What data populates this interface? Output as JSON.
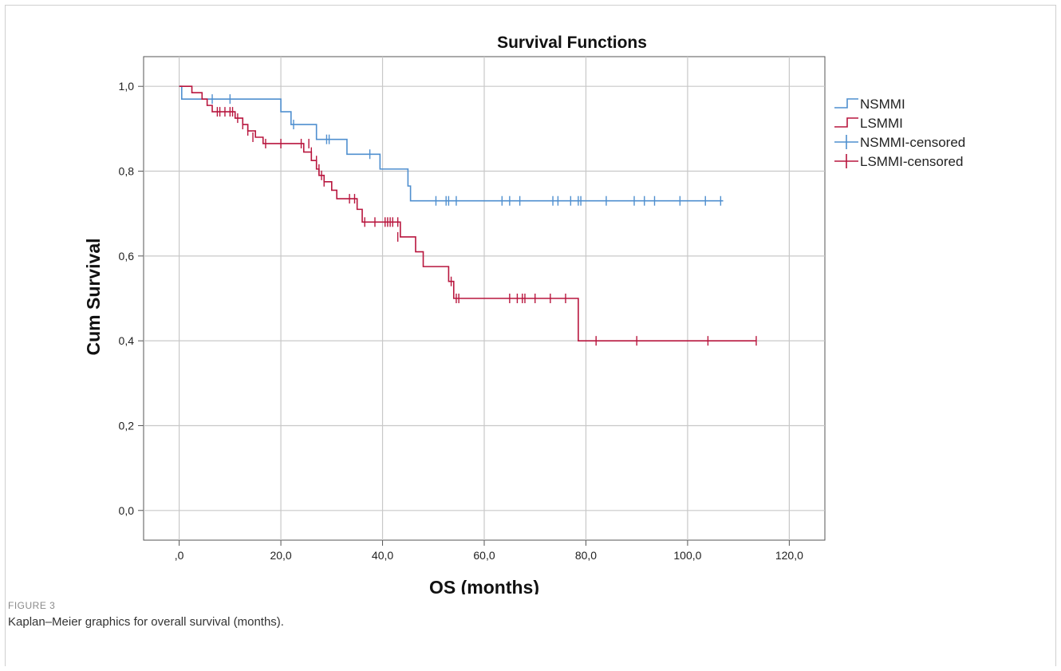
{
  "figure": {
    "label": "FIGURE 3",
    "caption": "Kaplan–Meier graphics for overall survival (months)."
  },
  "chart_data": {
    "type": "line",
    "subtype": "kaplan-meier step plot",
    "title": "Survival Functions",
    "xlabel": "OS (months)",
    "ylabel": "Cum Survival",
    "xlim": [
      -7,
      127
    ],
    "ylim": [
      -0.07,
      1.07
    ],
    "x_ticks": [
      0,
      20,
      40,
      60,
      80,
      100,
      120
    ],
    "x_tick_labels": [
      ",0",
      "20,0",
      "40,0",
      "60,0",
      "80,0",
      "100,0",
      "120,0"
    ],
    "y_ticks": [
      0,
      0.2,
      0.4,
      0.6,
      0.8,
      1.0
    ],
    "y_tick_labels": [
      "0,0",
      "0,2",
      "0,4",
      "0,6",
      "0,8",
      "1,0"
    ],
    "grid": true,
    "legend_position": "right",
    "legend": [
      {
        "label": "NSMMI",
        "kind": "line",
        "color": "#4f8fcf"
      },
      {
        "label": "LSMMI",
        "kind": "line",
        "color": "#b8163e"
      },
      {
        "label": "NSMMI-censored",
        "kind": "censor",
        "color": "#4f8fcf"
      },
      {
        "label": "LSMMI-censored",
        "kind": "censor",
        "color": "#b8163e"
      }
    ],
    "series": [
      {
        "name": "NSMMI",
        "color": "#4f8fcf",
        "steps": [
          [
            0,
            1.0
          ],
          [
            0.5,
            0.97
          ],
          [
            20,
            0.94
          ],
          [
            22,
            0.91
          ],
          [
            27,
            0.875
          ],
          [
            33,
            0.84
          ],
          [
            39.5,
            0.805
          ],
          [
            45,
            0.765
          ],
          [
            45.5,
            0.73
          ],
          [
            107,
            0.73
          ]
        ],
        "censored": [
          [
            6.5,
            0.97
          ],
          [
            10,
            0.97
          ],
          [
            22.5,
            0.91
          ],
          [
            29,
            0.875
          ],
          [
            29.5,
            0.875
          ],
          [
            37.5,
            0.84
          ],
          [
            50.5,
            0.73
          ],
          [
            52.5,
            0.73
          ],
          [
            53,
            0.73
          ],
          [
            54.5,
            0.73
          ],
          [
            63.5,
            0.73
          ],
          [
            65,
            0.73
          ],
          [
            67,
            0.73
          ],
          [
            73.5,
            0.73
          ],
          [
            74.5,
            0.73
          ],
          [
            77,
            0.73
          ],
          [
            78.5,
            0.73
          ],
          [
            79,
            0.73
          ],
          [
            84,
            0.73
          ],
          [
            89.5,
            0.73
          ],
          [
            91.5,
            0.73
          ],
          [
            93.5,
            0.73
          ],
          [
            98.5,
            0.73
          ],
          [
            103.5,
            0.73
          ],
          [
            106.5,
            0.73
          ]
        ]
      },
      {
        "name": "LSMMI",
        "color": "#b8163e",
        "steps": [
          [
            0,
            1.0
          ],
          [
            2.5,
            0.985
          ],
          [
            4.5,
            0.97
          ],
          [
            5.5,
            0.955
          ],
          [
            6.5,
            0.94
          ],
          [
            11,
            0.925
          ],
          [
            12.5,
            0.91
          ],
          [
            13.5,
            0.895
          ],
          [
            15,
            0.88
          ],
          [
            16.5,
            0.865
          ],
          [
            24.5,
            0.845
          ],
          [
            26,
            0.825
          ],
          [
            27,
            0.805
          ],
          [
            27.5,
            0.79
          ],
          [
            28.5,
            0.775
          ],
          [
            30,
            0.755
          ],
          [
            31,
            0.735
          ],
          [
            35,
            0.71
          ],
          [
            36,
            0.68
          ],
          [
            43.5,
            0.645
          ],
          [
            46.5,
            0.61
          ],
          [
            48,
            0.575
          ],
          [
            53,
            0.54
          ],
          [
            54,
            0.5
          ],
          [
            78.5,
            0.4
          ],
          [
            113.5,
            0.4
          ]
        ],
        "censored": [
          [
            7.5,
            0.94
          ],
          [
            8,
            0.94
          ],
          [
            9,
            0.94
          ],
          [
            10,
            0.94
          ],
          [
            10.5,
            0.94
          ],
          [
            11.5,
            0.925
          ],
          [
            12.5,
            0.91
          ],
          [
            13.5,
            0.895
          ],
          [
            14.5,
            0.88
          ],
          [
            17,
            0.865
          ],
          [
            20,
            0.865
          ],
          [
            24,
            0.865
          ],
          [
            25.5,
            0.865
          ],
          [
            26,
            0.845
          ],
          [
            27,
            0.825
          ],
          [
            27.5,
            0.805
          ],
          [
            28,
            0.79
          ],
          [
            28.5,
            0.775
          ],
          [
            33.5,
            0.735
          ],
          [
            34.5,
            0.735
          ],
          [
            36.5,
            0.68
          ],
          [
            38.5,
            0.68
          ],
          [
            40.5,
            0.68
          ],
          [
            41,
            0.68
          ],
          [
            41.5,
            0.68
          ],
          [
            42,
            0.68
          ],
          [
            43,
            0.68
          ],
          [
            43,
            0.645
          ],
          [
            53.5,
            0.54
          ],
          [
            54.5,
            0.5
          ],
          [
            55,
            0.5
          ],
          [
            65,
            0.5
          ],
          [
            66.5,
            0.5
          ],
          [
            67.5,
            0.5
          ],
          [
            68,
            0.5
          ],
          [
            70,
            0.5
          ],
          [
            73,
            0.5
          ],
          [
            76,
            0.5
          ],
          [
            82,
            0.4
          ],
          [
            90,
            0.4
          ],
          [
            104,
            0.4
          ],
          [
            113.5,
            0.4
          ]
        ]
      }
    ]
  }
}
